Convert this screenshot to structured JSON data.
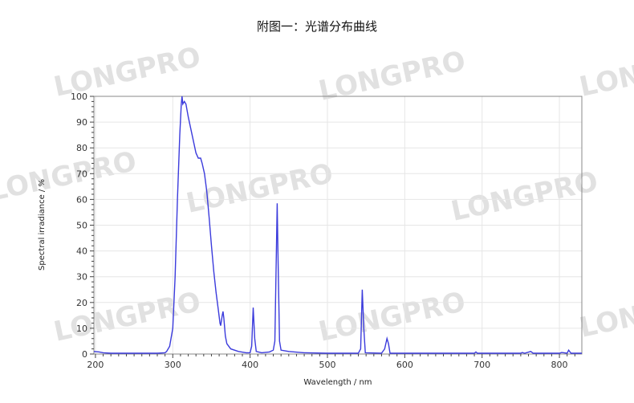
{
  "title": "附图一：光谱分布曲线",
  "watermark": "LONGPRO",
  "chart_data": {
    "type": "line",
    "title": "",
    "xlabel": "Wavelength / nm",
    "ylabel": "Spectral irradiance / %",
    "xlim": [
      198,
      829
    ],
    "ylim": [
      0,
      100
    ],
    "xticks": [
      200,
      300,
      400,
      500,
      600,
      700,
      800
    ],
    "yticks": [
      0,
      10,
      20,
      30,
      40,
      50,
      60,
      70,
      80,
      90,
      100
    ],
    "grid": true,
    "legend": "none",
    "line_color": "#3b3bdc",
    "series": [
      {
        "x": [
          198,
          205,
          210,
          220,
          250,
          280,
          290,
          292,
          296,
          300,
          303,
          306,
          309,
          311,
          312,
          313,
          315,
          317,
          320,
          325,
          330,
          333,
          336,
          338,
          341,
          344,
          347,
          350,
          353,
          356,
          359,
          361,
          362,
          364,
          365,
          366,
          368,
          370,
          375,
          385,
          395,
          400,
          402,
          404,
          406,
          408,
          415,
          425,
          430,
          432,
          434,
          435,
          436,
          438,
          440,
          450,
          470,
          500,
          540,
          543,
          545,
          547,
          549,
          570,
          574,
          577,
          579,
          581,
          690,
          692,
          694,
          750,
          752,
          755,
          763,
          766,
          800,
          803,
          810,
          812,
          815,
          829
        ],
        "y": [
          1,
          0.8,
          0.5,
          0.3,
          0.3,
          0.3,
          0.5,
          1,
          3,
          10,
          30,
          60,
          85,
          97,
          100,
          97,
          98,
          97,
          92,
          85,
          78,
          76,
          76,
          74,
          70,
          63,
          53,
          42,
          32,
          24,
          17,
          12,
          11,
          15,
          16.5,
          14,
          7,
          4,
          2,
          1,
          0.5,
          0.5,
          3,
          18,
          6,
          1,
          0.5,
          0.8,
          1.5,
          5,
          40,
          58.5,
          40,
          5,
          1.5,
          1,
          0.5,
          0.3,
          0.3,
          2,
          25,
          10,
          0.5,
          0.3,
          2,
          6,
          4,
          0.3,
          0.3,
          0.8,
          0.3,
          0.3,
          0.6,
          0.3,
          1,
          0.3,
          0.3,
          0.6,
          0.3,
          1.5,
          0.3,
          0.3
        ]
      }
    ]
  }
}
